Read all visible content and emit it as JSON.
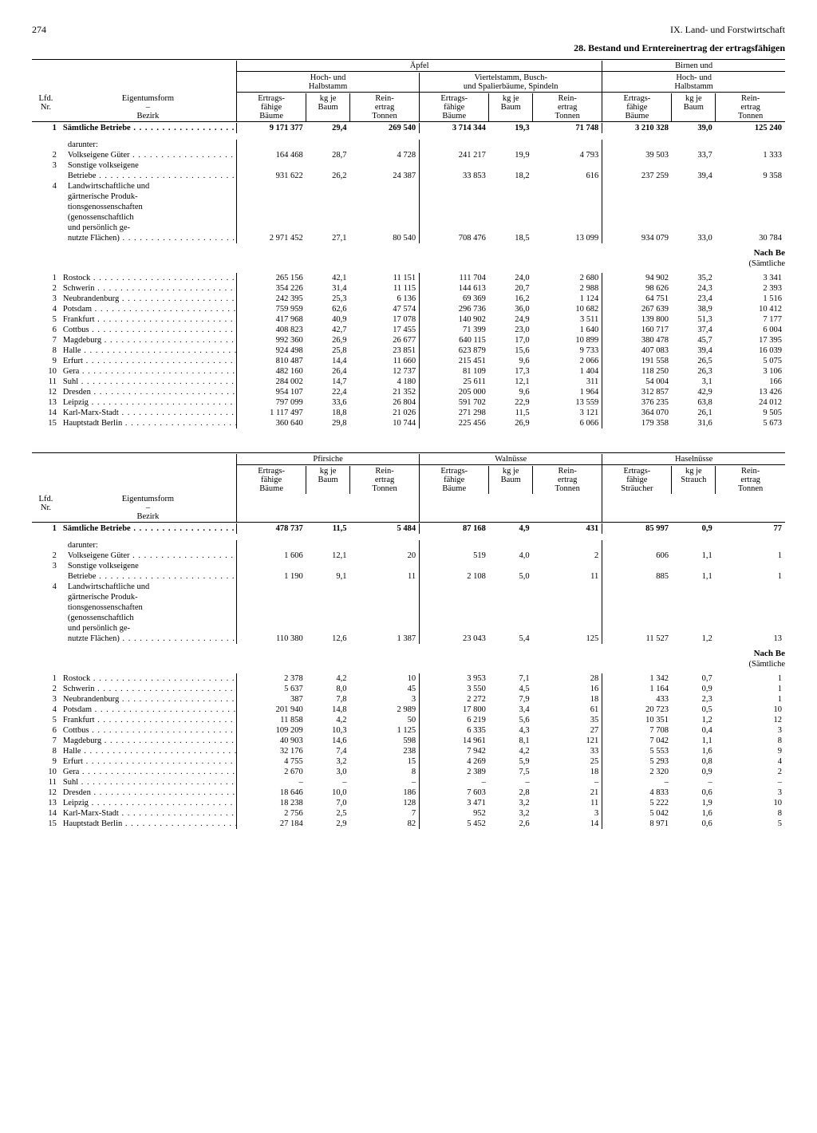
{
  "page_number": "274",
  "chapter": "IX. Land- und Forstwirtschaft",
  "title": "28. Bestand und Erntereinertrag der ertragsfähigen",
  "header_labels": {
    "lfd": "Lfd.\nNr.",
    "eigentumsform": "Eigentumsform",
    "bezirk": "Bezirk",
    "ertragsfaehige_baeume": "Ertrags-\nfähige\nBäume",
    "kg_je_baum": "kg je\nBaum",
    "reinertrag_tonnen": "Rein-\nertrag\nTonnen",
    "ertragsfaehige_straeucher": "Ertrags-\nfähige\nSträucher",
    "kg_je_strauch": "kg je\nStrauch"
  },
  "table1_groups": {
    "apfel": "Äpfel",
    "apfel_sub1": "Hoch- und\nHalbstamm",
    "apfel_sub2": "Viertelstamm, Busch-\nund Spalierbäume, Spindeln",
    "birnen": "Birnen und",
    "birnen_sub1": "Hoch- und\nHalbstamm"
  },
  "table2_groups": {
    "pfirsiche": "Pfirsiche",
    "walnuesse": "Walnüsse",
    "haselnuesse": "Haselnüsse"
  },
  "section_labels": {
    "darunter": "darunter:",
    "nach_be": "Nach Be",
    "saemtliche": "(Sämtliche"
  },
  "ownership_rows": [
    {
      "n": "1",
      "name": "Sämtliche Betriebe",
      "bold": true,
      "t1": [
        "9 171 377",
        "29,4",
        "269 540",
        "3 714 344",
        "19,3",
        "71 748",
        "3 210 328",
        "39,0",
        "125 240"
      ],
      "t2": [
        "478 737",
        "11,5",
        "5 484",
        "87 168",
        "4,9",
        "431",
        "85 997",
        "0,9",
        "77"
      ]
    },
    {
      "n": "2",
      "name": "Volkseigene Güter",
      "indent": true,
      "t1": [
        "164 468",
        "28,7",
        "4 728",
        "241 217",
        "19,9",
        "4 793",
        "39 503",
        "33,7",
        "1 333"
      ],
      "t2": [
        "1 606",
        "12,1",
        "20",
        "519",
        "4,0",
        "2",
        "606",
        "1,1",
        "1"
      ]
    },
    {
      "n": "3",
      "name": "Sonstige volkseigene",
      "indent": true,
      "cont": "Betriebe",
      "t1": [
        "931 622",
        "26,2",
        "24 387",
        "33 853",
        "18,2",
        "616",
        "237 259",
        "39,4",
        "9 358"
      ],
      "t2": [
        "1 190",
        "9,1",
        "11",
        "2 108",
        "5,0",
        "11",
        "885",
        "1,1",
        "1"
      ]
    },
    {
      "n": "4",
      "name": "Landwirtschaftliche und",
      "indent": true,
      "cont_lines": [
        "gärtnerische Produk-",
        "tionsgenossenschaften",
        "(genossenschaftlich",
        "und persönlich ge-",
        "nutzte Flächen)"
      ],
      "t1": [
        "2 971 452",
        "27,1",
        "80 540",
        "708 476",
        "18,5",
        "13 099",
        "934 079",
        "33,0",
        "30 784"
      ],
      "t2": [
        "110 380",
        "12,6",
        "1 387",
        "23 043",
        "5,4",
        "125",
        "11 527",
        "1,2",
        "13"
      ]
    }
  ],
  "district_rows": [
    {
      "n": "1",
      "name": "Rostock",
      "t1": [
        "265 156",
        "42,1",
        "11 151",
        "111 704",
        "24,0",
        "2 680",
        "94 902",
        "35,2",
        "3 341"
      ],
      "t2": [
        "2 378",
        "4,2",
        "10",
        "3 953",
        "7,1",
        "28",
        "1 342",
        "0,7",
        "1"
      ]
    },
    {
      "n": "2",
      "name": "Schwerin",
      "t1": [
        "354 226",
        "31,4",
        "11 115",
        "144 613",
        "20,7",
        "2 988",
        "98 626",
        "24,3",
        "2 393"
      ],
      "t2": [
        "5 637",
        "8,0",
        "45",
        "3 550",
        "4,5",
        "16",
        "1 164",
        "0,9",
        "1"
      ]
    },
    {
      "n": "3",
      "name": "Neubrandenburg",
      "t1": [
        "242 395",
        "25,3",
        "6 136",
        "69 369",
        "16,2",
        "1 124",
        "64 751",
        "23,4",
        "1 516"
      ],
      "t2": [
        "387",
        "7,8",
        "3",
        "2 272",
        "7,9",
        "18",
        "433",
        "2,3",
        "1"
      ]
    },
    {
      "n": "4",
      "name": "Potsdam",
      "t1": [
        "759 959",
        "62,6",
        "47 574",
        "296 736",
        "36,0",
        "10 682",
        "267 639",
        "38,9",
        "10 412"
      ],
      "t2": [
        "201 940",
        "14,8",
        "2 989",
        "17 800",
        "3,4",
        "61",
        "20 723",
        "0,5",
        "10"
      ]
    },
    {
      "n": "5",
      "name": "Frankfurt",
      "t1": [
        "417 968",
        "40,9",
        "17 078",
        "140 902",
        "24,9",
        "3 511",
        "139 800",
        "51,3",
        "7 177"
      ],
      "t2": [
        "11 858",
        "4,2",
        "50",
        "6 219",
        "5,6",
        "35",
        "10 351",
        "1,2",
        "12"
      ]
    },
    {
      "n": "6",
      "name": "Cottbus",
      "t1": [
        "408 823",
        "42,7",
        "17 455",
        "71 399",
        "23,0",
        "1 640",
        "160 717",
        "37,4",
        "6 004"
      ],
      "t2": [
        "109 209",
        "10,3",
        "1 125",
        "6 335",
        "4,3",
        "27",
        "7 708",
        "0,4",
        "3"
      ]
    },
    {
      "n": "7",
      "name": "Magdeburg",
      "t1": [
        "992 360",
        "26,9",
        "26 677",
        "640 115",
        "17,0",
        "10 899",
        "380 478",
        "45,7",
        "17 395"
      ],
      "t2": [
        "40 903",
        "14,6",
        "598",
        "14 961",
        "8,1",
        "121",
        "7 042",
        "1,1",
        "8"
      ]
    },
    {
      "n": "8",
      "name": "Halle",
      "t1": [
        "924 498",
        "25,8",
        "23 851",
        "623 879",
        "15,6",
        "9 733",
        "407 083",
        "39,4",
        "16 039"
      ],
      "t2": [
        "32 176",
        "7,4",
        "238",
        "7 942",
        "4,2",
        "33",
        "5 553",
        "1,6",
        "9"
      ]
    },
    {
      "n": "9",
      "name": "Erfurt",
      "t1": [
        "810 487",
        "14,4",
        "11 660",
        "215 451",
        "9,6",
        "2 066",
        "191 558",
        "26,5",
        "5 075"
      ],
      "t2": [
        "4 755",
        "3,2",
        "15",
        "4 269",
        "5,9",
        "25",
        "5 293",
        "0,8",
        "4"
      ]
    },
    {
      "n": "10",
      "name": "Gera",
      "t1": [
        "482 160",
        "26,4",
        "12 737",
        "81 109",
        "17,3",
        "1 404",
        "118 250",
        "26,3",
        "3 106"
      ],
      "t2": [
        "2 670",
        "3,0",
        "8",
        "2 389",
        "7,5",
        "18",
        "2 320",
        "0,9",
        "2"
      ]
    },
    {
      "n": "11",
      "name": "Suhl",
      "t1": [
        "284 002",
        "14,7",
        "4 180",
        "25 611",
        "12,1",
        "311",
        "54 004",
        "3,1",
        "166"
      ],
      "t2": [
        "–",
        "–",
        "–",
        "–",
        "–",
        "–",
        "–",
        "–",
        "–"
      ]
    },
    {
      "n": "12",
      "name": "Dresden",
      "t1": [
        "954 107",
        "22,4",
        "21 352",
        "205 000",
        "9,6",
        "1 964",
        "312 857",
        "42,9",
        "13 426"
      ],
      "t2": [
        "18 646",
        "10,0",
        "186",
        "7 603",
        "2,8",
        "21",
        "4 833",
        "0,6",
        "3"
      ]
    },
    {
      "n": "13",
      "name": "Leipzig",
      "t1": [
        "797 099",
        "33,6",
        "26 804",
        "591 702",
        "22,9",
        "13 559",
        "376 235",
        "63,8",
        "24 012"
      ],
      "t2": [
        "18 238",
        "7,0",
        "128",
        "3 471",
        "3,2",
        "11",
        "5 222",
        "1,9",
        "10"
      ]
    },
    {
      "n": "14",
      "name": "Karl-Marx-Stadt",
      "t1": [
        "1 117 497",
        "18,8",
        "21 026",
        "271 298",
        "11,5",
        "3 121",
        "364 070",
        "26,1",
        "9 505"
      ],
      "t2": [
        "2 756",
        "2,5",
        "7",
        "952",
        "3,2",
        "3",
        "5 042",
        "1,6",
        "8"
      ]
    },
    {
      "n": "15",
      "name": "Hauptstadt Berlin",
      "t1": [
        "360 640",
        "29,8",
        "10 744",
        "225 456",
        "26,9",
        "6 066",
        "179 358",
        "31,6",
        "5 673"
      ],
      "t2": [
        "27 184",
        "2,9",
        "82",
        "5 452",
        "2,6",
        "14",
        "8 971",
        "0,6",
        "5"
      ]
    }
  ]
}
